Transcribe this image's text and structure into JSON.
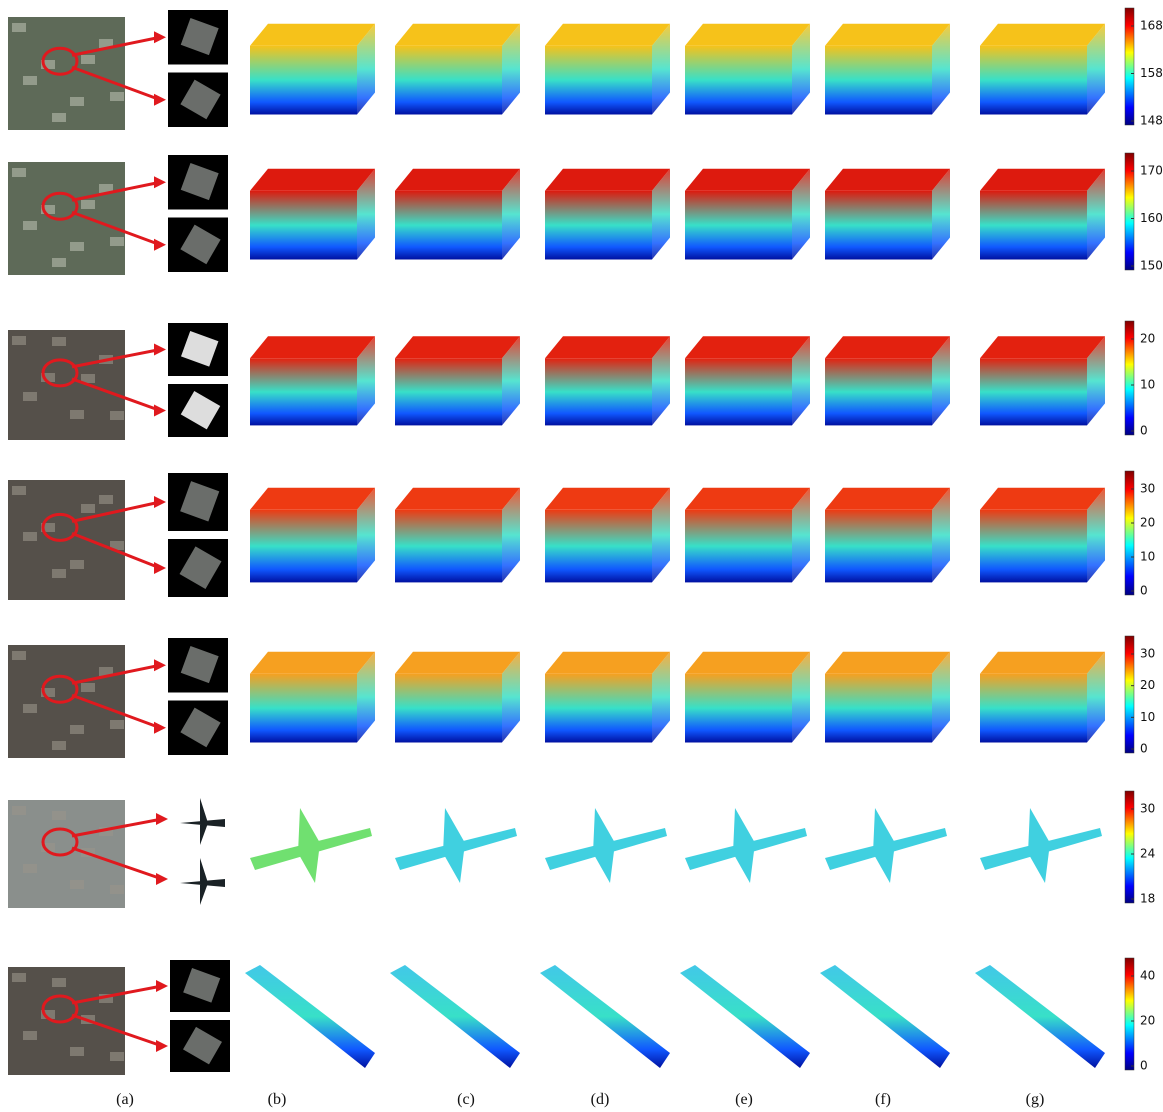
{
  "columns": [
    "(a)",
    "(b)",
    "(c)",
    "(d)",
    "(e)",
    "(f)",
    "(g)"
  ],
  "rows": [
    {
      "colorbar_ticks": [
        168,
        158,
        148
      ]
    },
    {
      "colorbar_ticks": [
        170,
        160,
        150
      ]
    },
    {
      "colorbar_ticks": [
        20,
        10,
        0
      ]
    },
    {
      "colorbar_ticks": [
        30,
        20,
        10,
        0
      ]
    },
    {
      "colorbar_ticks": [
        30,
        20,
        10,
        0
      ]
    },
    {
      "colorbar_ticks": [
        30,
        24,
        18
      ]
    },
    {
      "colorbar_ticks": [
        40,
        20,
        0
      ]
    }
  ]
}
